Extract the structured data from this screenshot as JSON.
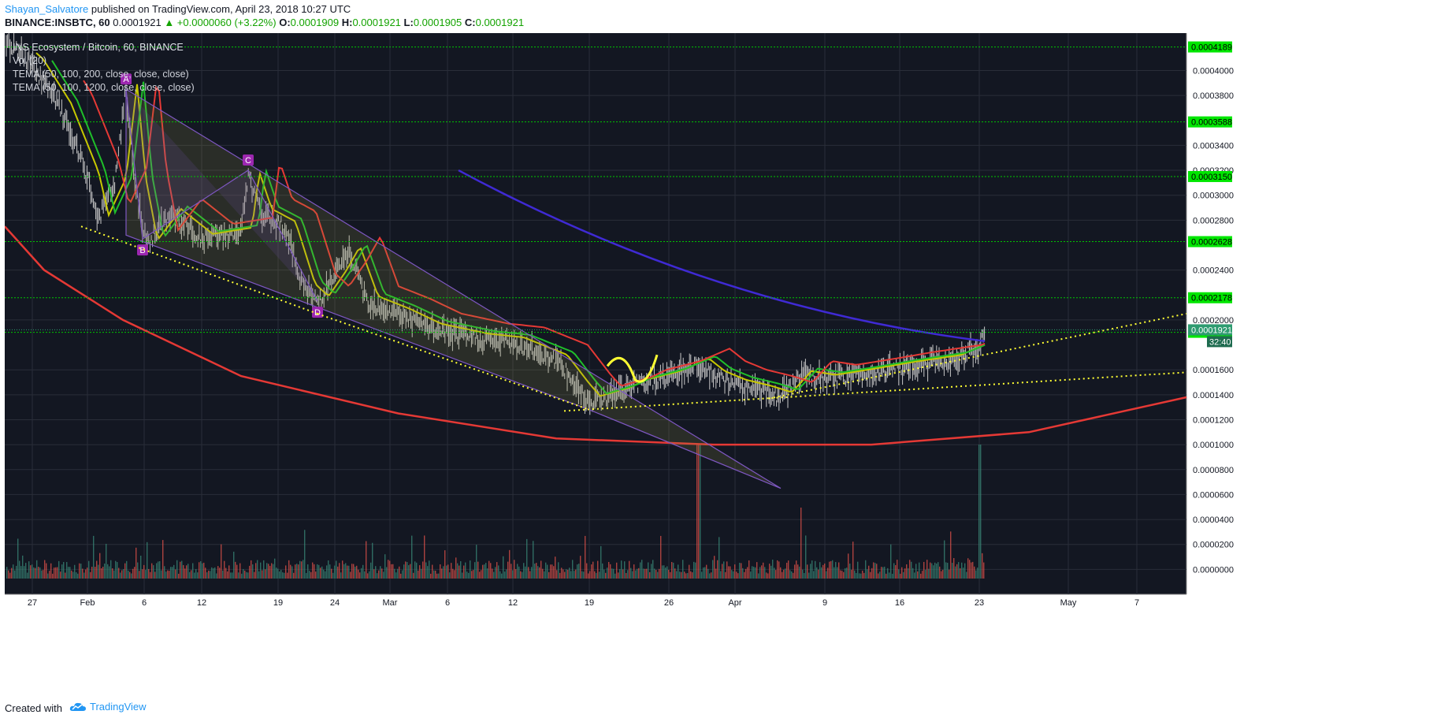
{
  "header": {
    "author": "Shayan_Salvatore",
    "published": "published on TradingView.com, April 23, 2018 10:27 UTC",
    "symbol": "BINANCE:INSBTC, 60",
    "last": "0.0001921",
    "change": "▲ +0.0000060 (+3.22%)",
    "o_label": "O:",
    "o_val": "0.0001909",
    "h_label": "H:",
    "h_val": "0.0001921",
    "l_label": "L:",
    "l_val": "0.0001905",
    "c_label": "C:",
    "c_val": "0.0001921"
  },
  "legend": {
    "title": "INS Ecosystem / Bitcoin, 60, BINANCE",
    "vol": "Vol (20)",
    "tema1": "TEMA (50, 100, 200, close, close, close)",
    "tema2": "TEMA (50, 100, 1200, close, close, close)"
  },
  "footer": {
    "created": "Created with",
    "brand": "TradingView"
  },
  "colors": {
    "background": "#131722",
    "grid": "#2a2e39",
    "level_line": "#00c800",
    "level_badge": "#00e600",
    "price_badge": "#2e9b70",
    "ema_red": "#e53935",
    "ema_green": "#1fbf2a",
    "ema_yellow": "#c8c800",
    "trend_yellow": "#ffff33",
    "wedge": "#7e57c2",
    "curve_blue": "#3f2ad4",
    "volume": "#e0524a",
    "candles": "#c8c8c8"
  },
  "chart_data": {
    "type": "line",
    "title": "INS Ecosystem / Bitcoin, 60, BINANCE",
    "xlabel": "",
    "ylabel": "",
    "x_ticks": [
      "27",
      "Feb",
      "6",
      "12",
      "19",
      "24",
      "Mar",
      "6",
      "12",
      "19",
      "26",
      "Apr",
      "9",
      "16",
      "23",
      "May",
      "7"
    ],
    "y_ticks": [
      "0.0004000",
      "0.0003800",
      "0.0003400",
      "0.0003200",
      "0.0003000",
      "0.0002800",
      "0.0002400",
      "0.0002000",
      "0.0001600",
      "0.0001400",
      "0.0001200",
      "0.0001000",
      "0.0000800",
      "0.0000600",
      "0.0000400",
      "0.0000200",
      "0.0000000"
    ],
    "ylim": [
      -2e-05,
      0.00043
    ],
    "resistance_levels": [
      "0.0004189",
      "0.0003588",
      "0.0003150",
      "0.0002628",
      "0.0002178",
      "0.0001901"
    ],
    "current_price": "0.0001921",
    "countdown": "32:40",
    "pattern_points": [
      "A",
      "B",
      "C",
      "D"
    ],
    "series": [
      {
        "name": "Price",
        "x": [
          "27",
          "Feb",
          "6",
          "12",
          "19",
          "24",
          "Mar",
          "6",
          "12",
          "19",
          "26",
          "Apr",
          "9",
          "16",
          "23"
        ],
        "values": [
          0.000405,
          0.00032,
          0.00029,
          0.00027,
          0.00028,
          0.00024,
          0.00022,
          0.0002,
          0.000185,
          0.00014,
          0.000148,
          0.000142,
          0.000152,
          0.000158,
          0.000192
        ]
      },
      {
        "name": "Vol (20)",
        "values": []
      },
      {
        "name": "TEMA (50, 100, 200, close, close, close)",
        "values": []
      },
      {
        "name": "TEMA (50, 100, 1200, close, close, close)",
        "values": []
      }
    ]
  }
}
